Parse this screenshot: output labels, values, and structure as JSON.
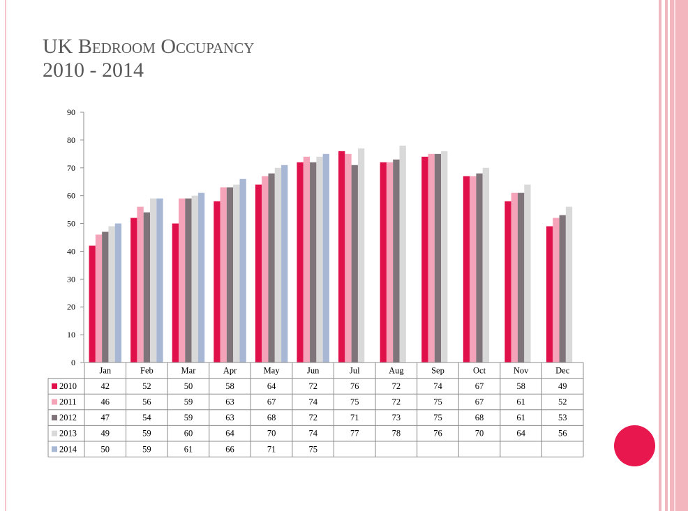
{
  "slide": {
    "title_line1": "UK Bedroom Occupancy",
    "title_line2": "2010 - 2014",
    "accent_color": "#e8174e"
  },
  "chart_data": {
    "type": "bar",
    "title": "",
    "xlabel": "",
    "ylabel": "",
    "ylim": [
      0,
      90
    ],
    "yticks": [
      0,
      10,
      20,
      30,
      40,
      50,
      60,
      70,
      80,
      90
    ],
    "grid": false,
    "legend": "data-table-below",
    "categories": [
      "Jan",
      "Feb",
      "Mar",
      "Apr",
      "May",
      "Jun",
      "Jul",
      "Aug",
      "Sep",
      "Oct",
      "Nov",
      "Dec"
    ],
    "series": [
      {
        "name": "2010",
        "color": "#e0114a",
        "values": [
          42,
          52,
          50,
          58,
          64,
          72,
          76,
          72,
          74,
          67,
          58,
          49
        ]
      },
      {
        "name": "2011",
        "color": "#f4a3b9",
        "values": [
          46,
          56,
          59,
          63,
          67,
          74,
          75,
          72,
          75,
          67,
          61,
          52
        ]
      },
      {
        "name": "2012",
        "color": "#7f7479",
        "values": [
          47,
          54,
          59,
          63,
          68,
          72,
          71,
          73,
          75,
          68,
          61,
          53
        ]
      },
      {
        "name": "2013",
        "color": "#d9d9d9",
        "values": [
          49,
          59,
          60,
          64,
          70,
          74,
          77,
          78,
          76,
          70,
          64,
          56
        ]
      },
      {
        "name": "2014",
        "color": "#a7b7d4",
        "values": [
          50,
          59,
          61,
          66,
          71,
          75,
          null,
          null,
          null,
          null,
          null,
          null
        ]
      }
    ]
  }
}
